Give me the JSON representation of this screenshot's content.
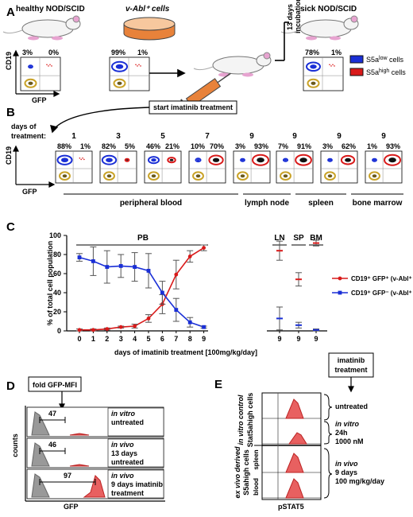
{
  "panels": {
    "A": "A",
    "B": "B",
    "C": "C",
    "D": "D",
    "E": "E"
  },
  "panelA": {
    "mouse1_label": "healthy NOD/SCID",
    "dish_label": "v-Abl⁺ cells",
    "mouse3_label": "sick NOD/SCID",
    "incubation": "13 days\nincubation",
    "plots": [
      {
        "left": "3%",
        "right": "0%"
      },
      {
        "left": "99%",
        "right": "1%"
      },
      {
        "left": "78%",
        "right": "1%"
      }
    ],
    "ylabel": "CD19",
    "xlabel": "GFP",
    "legend": [
      {
        "label": "S5alow cells",
        "color": "#1a2fd6"
      },
      {
        "label": "S5ahigh cells",
        "color": "#d91a1a"
      }
    ]
  },
  "panelB": {
    "start_label": "start imatinib treatment",
    "days_label": "days of\ntreatment:",
    "days": [
      "1",
      "3",
      "5",
      "7",
      "9",
      "9",
      "9",
      "9"
    ],
    "plots": [
      {
        "left": "88%",
        "right": "1%"
      },
      {
        "left": "82%",
        "right": "5%"
      },
      {
        "left": "46%",
        "right": "21%"
      },
      {
        "left": "10%",
        "right": "70%"
      },
      {
        "left": "3%",
        "right": "93%"
      },
      {
        "left": "7%",
        "right": "91%"
      },
      {
        "left": "3%",
        "right": "62%"
      },
      {
        "left": "1%",
        "right": "93%"
      }
    ],
    "tissues": [
      "peripheral blood",
      "lymph node",
      "spleen",
      "bone marrow"
    ],
    "ylabel": "CD19",
    "xlabel": "GFP"
  },
  "chart_data": {
    "type": "line",
    "ylabel": "% of total cell population",
    "xlabel": "days of imatinib treatment [100mg/kg/day]",
    "ylim": [
      0,
      100
    ],
    "yticks": [
      "0",
      "20",
      "40",
      "60",
      "80",
      "100"
    ],
    "groups": [
      "PB",
      "LN",
      "SP",
      "BM"
    ],
    "x_pb": [
      "0",
      "1",
      "2",
      "3",
      "4",
      "5",
      "6",
      "7",
      "8",
      "9"
    ],
    "x_tissue": [
      "9",
      "9",
      "9"
    ],
    "series": [
      {
        "name": "CD19⁺ GFP⁺ (v-Abl⁺ S5ahigh)",
        "color": "#d91a1a",
        "pb_values": [
          1,
          1,
          2,
          4,
          5,
          13,
          28,
          59,
          78,
          87
        ],
        "pb_err": [
          1,
          1,
          1,
          1,
          2,
          4,
          10,
          15,
          6,
          3
        ],
        "tissue_values": [
          84,
          54,
          92
        ],
        "tissue_err": [
          10,
          7,
          3
        ]
      },
      {
        "name": "CD19⁺ GFP⁻ (v-Abl⁺ S5alow)",
        "color": "#1a2fd6",
        "pb_values": [
          77,
          73,
          67,
          68,
          67,
          63,
          40,
          22,
          9,
          4
        ],
        "pb_err": [
          4,
          15,
          17,
          12,
          15,
          18,
          12,
          12,
          5,
          1
        ],
        "tissue_values": [
          13,
          6,
          1
        ],
        "tissue_err": [
          12,
          3,
          1
        ]
      }
    ]
  },
  "panelD": {
    "header": "fold GFP-MFI",
    "ylabel": "counts",
    "xlabel": "GFP",
    "rows": [
      {
        "value": "47",
        "l1": "in vitro",
        "l2": "untreated",
        "l3": ""
      },
      {
        "value": "46",
        "l1": "in vivo",
        "l2": "13 days",
        "l3": "untreated"
      },
      {
        "value": "97",
        "l1": "in vivo",
        "l2": "9 days imatinib",
        "l3": "treatment"
      }
    ]
  },
  "panelE": {
    "header": "imatinib\ntreatment",
    "xlabel": "pSTAT5",
    "top_group": "in vitro control",
    "top_sub": "Stat5ahigh cells",
    "bottom_group": "ex vivo derived",
    "bottom_sub": "S5ahigh cells",
    "row_labels": [
      "spleen",
      "blood"
    ],
    "untreated": "untreated",
    "invitro": [
      "in vitro",
      "24h",
      "1000 nM"
    ],
    "invivo": [
      "in vivo",
      "9 days",
      "100 mg/kg/day"
    ]
  }
}
